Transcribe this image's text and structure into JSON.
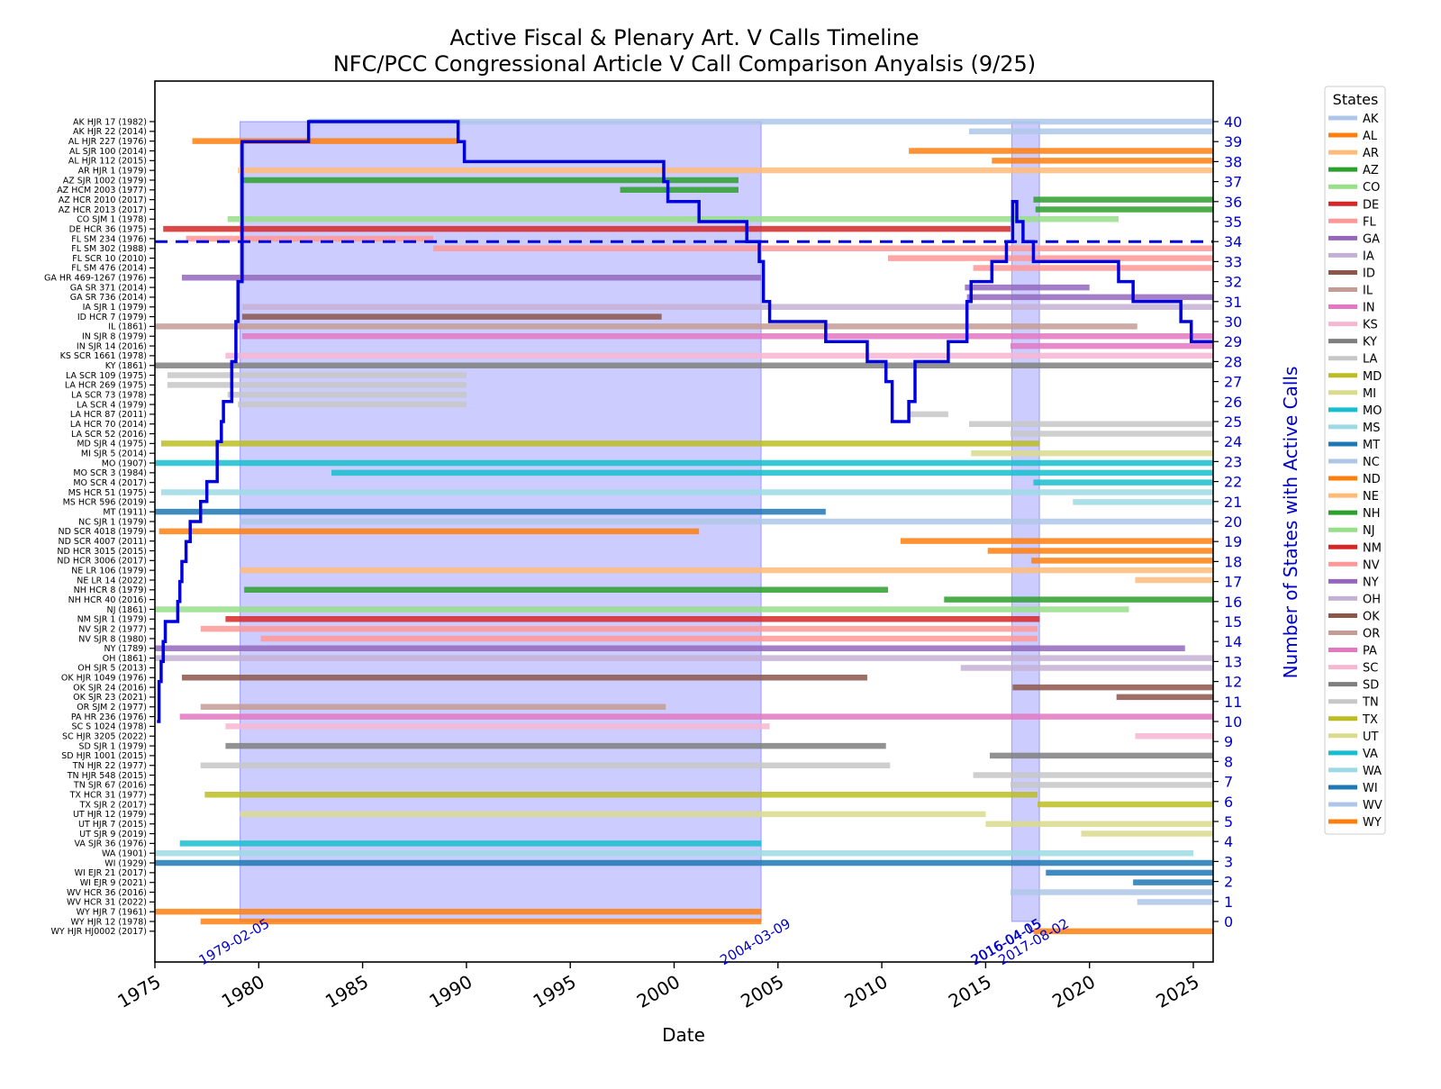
{
  "chart_data": {
    "type": "timeline",
    "title": "Active Fiscal & Plenary Art. V Calls Timeline",
    "subtitle": "NFC/PCC Congressional Article V Call Comparison Anyalsis (9/25)",
    "xlabel": "Date",
    "ylabel_right": "Number of States with Active Calls",
    "xlim": [
      1975,
      2025.95
    ],
    "x_ticks": [
      1975,
      1980,
      1985,
      1990,
      1995,
      2000,
      2005,
      2010,
      2015,
      2020,
      2025
    ],
    "y_right_lim": [
      -2,
      43
    ],
    "y_right_ticks": [
      0,
      1,
      2,
      3,
      4,
      5,
      6,
      7,
      8,
      9,
      10,
      11,
      12,
      13,
      14,
      15,
      16,
      17,
      18,
      19,
      20,
      21,
      22,
      23,
      24,
      25,
      26,
      27,
      28,
      29,
      30,
      31,
      32,
      33,
      34,
      35,
      36,
      37,
      38,
      39,
      40
    ],
    "threshold_line": {
      "value": 34,
      "style": "dashed",
      "color": "#0000dd"
    },
    "legend": {
      "title": "States",
      "position": "outside right",
      "entries": [
        {
          "state": "AK",
          "color": "#aec7e8"
        },
        {
          "state": "AL",
          "color": "#ff7f0e"
        },
        {
          "state": "AR",
          "color": "#ffbb78"
        },
        {
          "state": "AZ",
          "color": "#2ca02c"
        },
        {
          "state": "CO",
          "color": "#98df8a"
        },
        {
          "state": "DE",
          "color": "#d62728"
        },
        {
          "state": "FL",
          "color": "#ff9896"
        },
        {
          "state": "GA",
          "color": "#9467bd"
        },
        {
          "state": "IA",
          "color": "#c5b0d5"
        },
        {
          "state": "ID",
          "color": "#8c564b"
        },
        {
          "state": "IL",
          "color": "#c49c94"
        },
        {
          "state": "IN",
          "color": "#e377c2"
        },
        {
          "state": "KS",
          "color": "#f7b6d2"
        },
        {
          "state": "KY",
          "color": "#7f7f7f"
        },
        {
          "state": "LA",
          "color": "#c7c7c7"
        },
        {
          "state": "MD",
          "color": "#bcbd22"
        },
        {
          "state": "MI",
          "color": "#dbdb8d"
        },
        {
          "state": "MO",
          "color": "#17becf"
        },
        {
          "state": "MS",
          "color": "#9edae5"
        },
        {
          "state": "MT",
          "color": "#1f77b4"
        },
        {
          "state": "NC",
          "color": "#aec7e8"
        },
        {
          "state": "ND",
          "color": "#ff7f0e"
        },
        {
          "state": "NE",
          "color": "#ffbb78"
        },
        {
          "state": "NH",
          "color": "#2ca02c"
        },
        {
          "state": "NJ",
          "color": "#98df8a"
        },
        {
          "state": "NM",
          "color": "#d62728"
        },
        {
          "state": "NV",
          "color": "#ff9896"
        },
        {
          "state": "NY",
          "color": "#9467bd"
        },
        {
          "state": "OH",
          "color": "#c5b0d5"
        },
        {
          "state": "OK",
          "color": "#8c564b"
        },
        {
          "state": "OR",
          "color": "#c49c94"
        },
        {
          "state": "PA",
          "color": "#e377c2"
        },
        {
          "state": "SC",
          "color": "#f7b6d2"
        },
        {
          "state": "SD",
          "color": "#7f7f7f"
        },
        {
          "state": "TN",
          "color": "#c7c7c7"
        },
        {
          "state": "TX",
          "color": "#bcbd22"
        },
        {
          "state": "UT",
          "color": "#dbdb8d"
        },
        {
          "state": "VA",
          "color": "#17becf"
        },
        {
          "state": "WA",
          "color": "#9edae5"
        },
        {
          "state": "WI",
          "color": "#1f77b4"
        },
        {
          "state": "WV",
          "color": "#aec7e8"
        },
        {
          "state": "WY",
          "color": "#ff7f0e"
        }
      ]
    },
    "shaded_periods": [
      {
        "start": "1979-02-05",
        "end": "2004-03-09",
        "start_year": 1979.1,
        "end_year": 2004.19,
        "color": "#0000ff",
        "alpha": 0.2
      },
      {
        "start": "2016-04-05",
        "end": "2017-08-02",
        "start_year": 2016.26,
        "end_year": 2017.59,
        "color": "#0000ff",
        "alpha": 0.2
      }
    ],
    "date_annotations": [
      {
        "label": "1979-02-05",
        "year": 1979.1
      },
      {
        "label": "2004-03-09",
        "year": 2004.19
      },
      {
        "label": "2016-04-05",
        "year": 2016.26
      },
      {
        "label": "2016-04-15",
        "year": 2016.29
      },
      {
        "label": "2017-08-02",
        "year": 2017.59
      }
    ],
    "calls": [
      {
        "label": "AK HJR 17 (1982)",
        "state": "AK",
        "start": 1982.4,
        "end": 2025.95
      },
      {
        "label": "AK HJR 22 (2014)",
        "state": "AK",
        "start": 2014.2,
        "end": 2025.95
      },
      {
        "label": "AL HJR 227 (1976)",
        "state": "AL",
        "start": 1976.8,
        "end": 1989.6
      },
      {
        "label": "AL SJR 100 (2014)",
        "state": "AL",
        "start": 2011.3,
        "end": 2025.95
      },
      {
        "label": "AL HJR 112 (2015)",
        "state": "AL",
        "start": 2015.3,
        "end": 2025.95
      },
      {
        "label": "AR HJR 1 (1979)",
        "state": "AR",
        "start": 1979.0,
        "end": 2025.95
      },
      {
        "label": "AZ SJR 1002 (1979)",
        "state": "AZ",
        "start": 1979.2,
        "end": 2003.1
      },
      {
        "label": "AZ HCM 2003 (1977)",
        "state": "AZ",
        "start": 1997.4,
        "end": 2003.1
      },
      {
        "label": "AZ HCR 2010 (2017)",
        "state": "AZ",
        "start": 2017.3,
        "end": 2025.95
      },
      {
        "label": "AZ HCR 2013 (2017)",
        "state": "AZ",
        "start": 2017.4,
        "end": 2025.95
      },
      {
        "label": "CO SJM 1 (1978)",
        "state": "CO",
        "start": 1978.5,
        "end": 2021.4
      },
      {
        "label": "DE HCR 36 (1975)",
        "state": "DE",
        "start": 1975.4,
        "end": 2016.2
      },
      {
        "label": "FL SM 234 (1976)",
        "state": "FL",
        "start": 1976.5,
        "end": 1988.4
      },
      {
        "label": "FL SM 302 (1988)",
        "state": "FL",
        "start": 1988.4,
        "end": 2025.95
      },
      {
        "label": "FL SCR 10 (2010)",
        "state": "FL",
        "start": 2010.3,
        "end": 2025.95
      },
      {
        "label": "FL SM 476 (2014)",
        "state": "FL",
        "start": 2014.4,
        "end": 2025.95
      },
      {
        "label": "GA HR 469-1267 (1976)",
        "state": "GA",
        "start": 1976.3,
        "end": 2004.2
      },
      {
        "label": "GA SR 371 (2014)",
        "state": "GA",
        "start": 2014.0,
        "end": 2020.0
      },
      {
        "label": "GA SR 736 (2014)",
        "state": "GA",
        "start": 2014.1,
        "end": 2025.95
      },
      {
        "label": "IA SJR 1 (1979)",
        "state": "IA",
        "start": 1979.2,
        "end": 2025.95
      },
      {
        "label": "ID HCR 7 (1979)",
        "state": "ID",
        "start": 1979.2,
        "end": 1999.4
      },
      {
        "label": "IL (1861)",
        "state": "IL",
        "start": 1975.0,
        "end": 2022.3
      },
      {
        "label": "IN SJR 8 (1979)",
        "state": "IN",
        "start": 1979.2,
        "end": 2025.95
      },
      {
        "label": "IN SJR 14 (2016)",
        "state": "IN",
        "start": 2016.2,
        "end": 2025.95
      },
      {
        "label": "KS SCR 1661 (1978)",
        "state": "KS",
        "start": 1978.4,
        "end": 2025.95
      },
      {
        "label": "KY (1861)",
        "state": "KY",
        "start": 1975.0,
        "end": 2025.95
      },
      {
        "label": "LA SCR 109 (1975)",
        "state": "LA",
        "start": 1975.6,
        "end": 1990.0
      },
      {
        "label": "LA HCR 269 (1975)",
        "state": "LA",
        "start": 1975.6,
        "end": 1990.0
      },
      {
        "label": "LA SCR 73 (1978)",
        "state": "LA",
        "start": 1978.5,
        "end": 1990.0
      },
      {
        "label": "LA SCR 4 (1979)",
        "state": "LA",
        "start": 1979.0,
        "end": 1990.0
      },
      {
        "label": "LA HCR 87 (2011)",
        "state": "LA",
        "start": 2011.3,
        "end": 2013.2
      },
      {
        "label": "LA HCR 70 (2014)",
        "state": "LA",
        "start": 2014.2,
        "end": 2025.95
      },
      {
        "label": "LA SCR 52 (2016)",
        "state": "LA",
        "start": 2016.2,
        "end": 2025.95
      },
      {
        "label": "MD SJR 4 (1975)",
        "state": "MD",
        "start": 1975.3,
        "end": 2017.6
      },
      {
        "label": "MI SJR 5 (2014)",
        "state": "MI",
        "start": 2014.3,
        "end": 2025.95
      },
      {
        "label": "MO (1907)",
        "state": "MO",
        "start": 1975.0,
        "end": 2025.95
      },
      {
        "label": "MO SCR 3 (1984)",
        "state": "MO",
        "start": 1983.5,
        "end": 2025.95
      },
      {
        "label": "MO SCR 4 (2017)",
        "state": "MO",
        "start": 2017.3,
        "end": 2025.95
      },
      {
        "label": "MS HCR 51 (1975)",
        "state": "MS",
        "start": 1975.3,
        "end": 2025.95
      },
      {
        "label": "MS HCR 596 (2019)",
        "state": "MS",
        "start": 2019.2,
        "end": 2025.95
      },
      {
        "label": "MT (1911)",
        "state": "MT",
        "start": 1975.0,
        "end": 2007.3
      },
      {
        "label": "NC SJR 1 (1979)",
        "state": "NC",
        "start": 1979.1,
        "end": 2025.95
      },
      {
        "label": "ND SCR 4018 (1979)",
        "state": "ND",
        "start": 1975.2,
        "end": 2001.2
      },
      {
        "label": "ND SCR 4007 (2011)",
        "state": "ND",
        "start": 2010.9,
        "end": 2025.95
      },
      {
        "label": "ND HCR 3015 (2015)",
        "state": "ND",
        "start": 2015.1,
        "end": 2025.95
      },
      {
        "label": "ND HCR 3006 (2017)",
        "state": "ND",
        "start": 2017.2,
        "end": 2025.95
      },
      {
        "label": "NE LR 106 (1979)",
        "state": "NE",
        "start": 1979.1,
        "end": 2025.95
      },
      {
        "label": "NE LR 14 (2022)",
        "state": "NE",
        "start": 2022.2,
        "end": 2025.95
      },
      {
        "label": "NH HCR 8 (1979)",
        "state": "NH",
        "start": 1979.3,
        "end": 2010.3
      },
      {
        "label": "NH HCR 40 (2016)",
        "state": "NH",
        "start": 2013.0,
        "end": 2025.95
      },
      {
        "label": "NJ (1861)",
        "state": "NJ",
        "start": 1975.0,
        "end": 2021.9
      },
      {
        "label": "NM SJR 1 (1979)",
        "state": "NM",
        "start": 1978.4,
        "end": 2017.6
      },
      {
        "label": "NV SJR 2 (1977)",
        "state": "NV",
        "start": 1977.2,
        "end": 2017.5
      },
      {
        "label": "NV SJR 8 (1980)",
        "state": "NV",
        "start": 1980.1,
        "end": 2017.5
      },
      {
        "label": "NY (1789)",
        "state": "NY",
        "start": 1975.0,
        "end": 2024.6
      },
      {
        "label": "OH (1861)",
        "state": "OH",
        "start": 1975.0,
        "end": 2025.95
      },
      {
        "label": "OH SJR 5 (2013)",
        "state": "OH",
        "start": 2013.8,
        "end": 2025.95
      },
      {
        "label": "OK HJR 1049 (1976)",
        "state": "OK",
        "start": 1976.3,
        "end": 2009.3
      },
      {
        "label": "OK SJR 24 (2016)",
        "state": "OK",
        "start": 2016.3,
        "end": 2025.95
      },
      {
        "label": "OK SJR 23 (2021)",
        "state": "OK",
        "start": 2021.3,
        "end": 2025.95
      },
      {
        "label": "OR SJM 2 (1977)",
        "state": "OR",
        "start": 1977.2,
        "end": 1999.6
      },
      {
        "label": "PA HR 236 (1976)",
        "state": "PA",
        "start": 1976.2,
        "end": 2025.95
      },
      {
        "label": "SC S 1024 (1978)",
        "state": "SC",
        "start": 1978.4,
        "end": 2004.6
      },
      {
        "label": "SC HJR 3205 (2022)",
        "state": "SC",
        "start": 2022.2,
        "end": 2025.95
      },
      {
        "label": "SD SJR 1 (1979)",
        "state": "SD",
        "start": 1978.4,
        "end": 2010.2
      },
      {
        "label": "SD HJR 1001 (2015)",
        "state": "SD",
        "start": 2015.2,
        "end": 2025.95
      },
      {
        "label": "TN HJR 22 (1977)",
        "state": "TN",
        "start": 1977.2,
        "end": 2010.4
      },
      {
        "label": "TN HJR 548 (2015)",
        "state": "TN",
        "start": 2014.4,
        "end": 2025.95
      },
      {
        "label": "TN SJR 67 (2016)",
        "state": "TN",
        "start": 2016.2,
        "end": 2025.95
      },
      {
        "label": "TX HCR 31 (1977)",
        "state": "TX",
        "start": 1977.4,
        "end": 2017.5
      },
      {
        "label": "TX SJR 2 (2017)",
        "state": "TX",
        "start": 2017.5,
        "end": 2025.95
      },
      {
        "label": "UT HJR 12 (1979)",
        "state": "UT",
        "start": 1979.1,
        "end": 2015.0
      },
      {
        "label": "UT HJR 7 (2015)",
        "state": "UT",
        "start": 2015.0,
        "end": 2025.95
      },
      {
        "label": "UT SJR 9 (2019)",
        "state": "UT",
        "start": 2019.6,
        "end": 2025.95
      },
      {
        "label": "VA SJR 36 (1976)",
        "state": "VA",
        "start": 1976.2,
        "end": 2004.2
      },
      {
        "label": "WA (1901)",
        "state": "WA",
        "start": 1975.0,
        "end": 2025.0
      },
      {
        "label": "WI (1929)",
        "state": "WI",
        "start": 1975.0,
        "end": 2025.95
      },
      {
        "label": "WI EJR 21 (2017)",
        "state": "WI",
        "start": 2017.9,
        "end": 2025.95
      },
      {
        "label": "WI EJR 9 (2021)",
        "state": "WI",
        "start": 2022.1,
        "end": 2025.95
      },
      {
        "label": "WV HCR 36 (2016)",
        "state": "WV",
        "start": 2016.2,
        "end": 2025.95
      },
      {
        "label": "WV HCR 31 (2022)",
        "state": "WV",
        "start": 2022.3,
        "end": 2025.95
      },
      {
        "label": "WY HJR 7 (1961)",
        "state": "WY",
        "start": 1975.0,
        "end": 2004.2
      },
      {
        "label": "WY HJR 12 (1978)",
        "state": "WY",
        "start": 1977.2,
        "end": 2004.2
      },
      {
        "label": "WY HJR HJ0002 (2017)",
        "state": "WY",
        "start": 2017.3,
        "end": 2025.95
      }
    ],
    "active_count_series": {
      "name": "Number of States with Active Calls",
      "color": "#0000dd",
      "type": "step",
      "x": [
        1975.1,
        1975.2,
        1975.3,
        1975.4,
        1975.5,
        1976.1,
        1976.2,
        1976.3,
        1976.5,
        1976.7,
        1977.2,
        1977.5,
        1978.0,
        1978.2,
        1978.3,
        1978.7,
        1978.9,
        1979.0,
        1979.2,
        1982.4,
        1989.6,
        1989.9,
        1999.5,
        1999.7,
        2001.2,
        2003.5,
        2004.1,
        2004.3,
        2004.6,
        2007.3,
        2009.3,
        2010.2,
        2010.5,
        2011.3,
        2011.6,
        2013.2,
        2014.1,
        2014.3,
        2015.3,
        2016.0,
        2016.3,
        2016.5,
        2016.8,
        2017.3,
        2017.5,
        2017.8,
        2021.4,
        2022.1,
        2024.4,
        2024.9,
        2025.95
      ],
      "y": [
        10,
        12,
        13,
        14,
        15,
        16,
        17,
        18,
        19,
        20,
        21,
        22,
        24,
        25,
        26,
        28,
        30,
        32,
        39,
        40,
        39,
        38,
        37,
        36,
        35,
        34,
        33,
        31,
        30,
        29,
        28,
        27,
        25,
        26,
        28,
        29,
        31,
        32,
        33,
        34,
        36,
        35,
        34,
        33,
        33,
        33,
        32,
        31,
        30,
        29,
        29
      ]
    }
  }
}
